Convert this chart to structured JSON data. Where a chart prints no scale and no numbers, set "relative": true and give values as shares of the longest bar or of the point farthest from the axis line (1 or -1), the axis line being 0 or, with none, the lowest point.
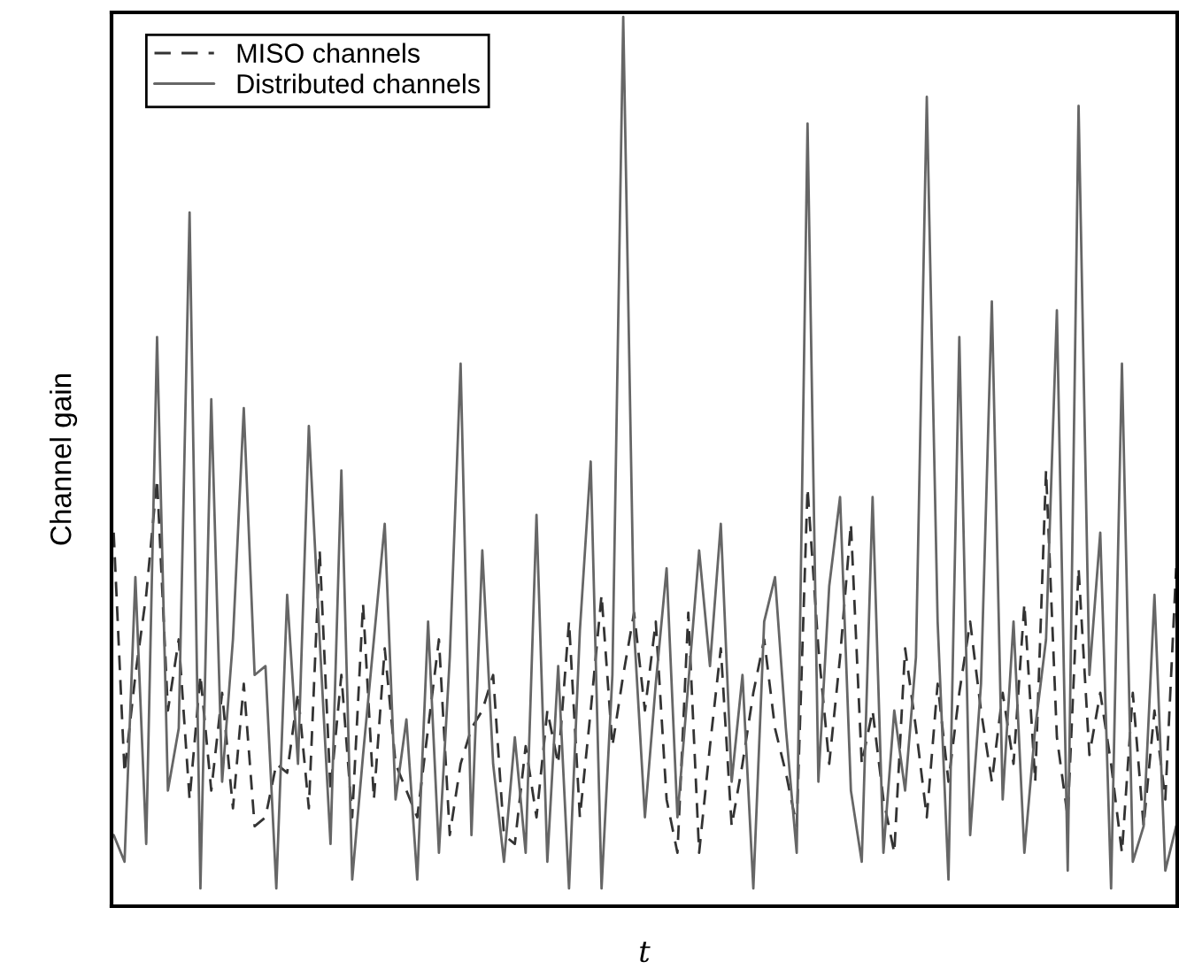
{
  "chart_data": {
    "type": "line",
    "xlabel": "t",
    "ylabel": "Channel gain",
    "relative": true,
    "legend": "top left",
    "grid": false,
    "categories": [
      null,
      null,
      null,
      null,
      null,
      null,
      null,
      null,
      null,
      null,
      null,
      null,
      null,
      null,
      null,
      null,
      null,
      null,
      null,
      null,
      null,
      null,
      null,
      null,
      null,
      null,
      null,
      null,
      null,
      null,
      null,
      null,
      null,
      null,
      null,
      null,
      null,
      null,
      null,
      null,
      null,
      null,
      null,
      null,
      null,
      null,
      null,
      null,
      null,
      null,
      null,
      null,
      null,
      null,
      null,
      null,
      null,
      null,
      null,
      null,
      null,
      null,
      null,
      null,
      null,
      null,
      null,
      null,
      null,
      null,
      null,
      null,
      null,
      null,
      null,
      null,
      null,
      null,
      null,
      null,
      null,
      null,
      null,
      null,
      null,
      null,
      null,
      null,
      null,
      null,
      null,
      null,
      null,
      null,
      null,
      null,
      null,
      null,
      null
    ],
    "series": [
      {
        "name": "MISO channels",
        "color": "#333333",
        "line_style": "dashed",
        "values": [
          0.42,
          0.15,
          0.26,
          0.35,
          0.48,
          0.22,
          0.3,
          0.12,
          0.26,
          0.13,
          0.24,
          0.11,
          0.25,
          0.09,
          0.1,
          0.16,
          0.15,
          0.24,
          0.11,
          0.4,
          0.13,
          0.26,
          0.1,
          0.34,
          0.12,
          0.29,
          0.16,
          0.13,
          0.1,
          0.2,
          0.3,
          0.08,
          0.16,
          0.2,
          0.22,
          0.26,
          0.08,
          0.07,
          0.18,
          0.1,
          0.22,
          0.16,
          0.32,
          0.1,
          0.22,
          0.35,
          0.18,
          0.26,
          0.33,
          0.22,
          0.32,
          0.12,
          0.06,
          0.33,
          0.06,
          0.18,
          0.29,
          0.09,
          0.16,
          0.24,
          0.3,
          0.2,
          0.15,
          0.09,
          0.47,
          0.29,
          0.16,
          0.28,
          0.43,
          0.16,
          0.22,
          0.12,
          0.06,
          0.29,
          0.2,
          0.1,
          0.25,
          0.14,
          0.24,
          0.32,
          0.22,
          0.14,
          0.24,
          0.16,
          0.34,
          0.14,
          0.49,
          0.19,
          0.1,
          0.38,
          0.17,
          0.24,
          0.16,
          0.06,
          0.24,
          0.09,
          0.22,
          0.12,
          0.38
        ]
      },
      {
        "name": "Distributed channels",
        "color": "#666666",
        "line_style": "solid",
        "values": [
          0.08,
          0.05,
          0.37,
          0.07,
          0.64,
          0.13,
          0.2,
          0.78,
          0.02,
          0.57,
          0.14,
          0.3,
          0.56,
          0.26,
          0.27,
          0.02,
          0.35,
          0.16,
          0.54,
          0.3,
          0.07,
          0.49,
          0.03,
          0.17,
          0.3,
          0.43,
          0.12,
          0.21,
          0.03,
          0.32,
          0.06,
          0.28,
          0.61,
          0.08,
          0.4,
          0.16,
          0.05,
          0.19,
          0.06,
          0.44,
          0.05,
          0.27,
          0.02,
          0.31,
          0.5,
          0.02,
          0.26,
          1.0,
          0.31,
          0.1,
          0.25,
          0.38,
          0.1,
          0.25,
          0.4,
          0.27,
          0.43,
          0.14,
          0.26,
          0.02,
          0.32,
          0.37,
          0.2,
          0.06,
          0.88,
          0.14,
          0.36,
          0.46,
          0.13,
          0.05,
          0.46,
          0.06,
          0.22,
          0.13,
          0.28,
          0.91,
          0.32,
          0.03,
          0.64,
          0.08,
          0.25,
          0.68,
          0.12,
          0.32,
          0.06,
          0.2,
          0.3,
          0.67,
          0.04,
          0.9,
          0.26,
          0.42,
          0.02,
          0.61,
          0.05,
          0.09,
          0.35,
          0.04,
          0.09
        ]
      }
    ]
  }
}
